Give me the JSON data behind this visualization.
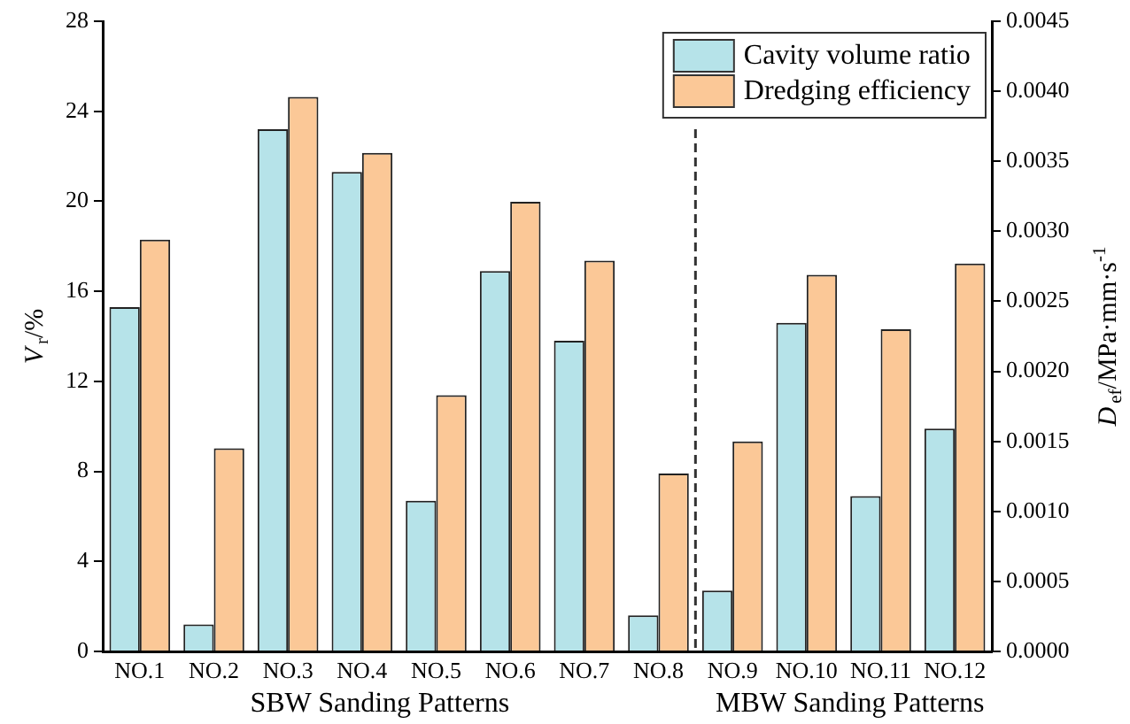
{
  "chart_data": {
    "type": "bar",
    "ylabel": "V$_{r}$/%",
    "y2label": "D$_{ef}$/MPa·mm·s$^{-1}$",
    "categories": [
      "NO.1",
      "NO.2",
      "NO.3",
      "NO.4",
      "NO.5",
      "NO.6",
      "NO.7",
      "NO.8",
      "NO.9",
      "NO.10",
      "NO.11",
      "NO.12"
    ],
    "series": [
      {
        "name": "Cavity volume ratio",
        "color": "#b6e3e9",
        "values": [
          15.3,
          1.2,
          23.2,
          21.3,
          6.7,
          16.9,
          13.8,
          1.6,
          2.7,
          14.6,
          6.9,
          9.9
        ]
      },
      {
        "name": "Dredging efficiency",
        "color": "#fbc897",
        "axis": "y2",
        "values": [
          0.00294,
          0.00145,
          0.00396,
          0.00356,
          0.00183,
          0.00321,
          0.00279,
          0.00127,
          0.0015,
          0.00269,
          0.0023,
          0.00277
        ]
      }
    ],
    "ylim": [
      0,
      28
    ],
    "yticks": [
      0,
      4,
      8,
      12,
      16,
      20,
      24,
      28
    ],
    "y2lim": [
      0,
      0.0045
    ],
    "y2ticks": [
      {
        "value": 0,
        "label": "0.0000"
      },
      {
        "value": 0.0005,
        "label": "0.0005"
      },
      {
        "value": 0.001,
        "label": "0.0010"
      },
      {
        "value": 0.0015,
        "label": "0.0015"
      },
      {
        "value": 0.002,
        "label": "0.0020"
      },
      {
        "value": 0.0025,
        "label": "0.0025"
      },
      {
        "value": 0.003,
        "label": "0.0030"
      },
      {
        "value": 0.0035,
        "label": "0.0035"
      },
      {
        "value": 0.004,
        "label": "0.0040"
      },
      {
        "value": 0.0045,
        "label": "0.0045"
      }
    ],
    "annotations": [
      "SBW Sanding Patterns",
      "MBW Sanding Patterns"
    ],
    "grid": false,
    "legend": "top right"
  }
}
